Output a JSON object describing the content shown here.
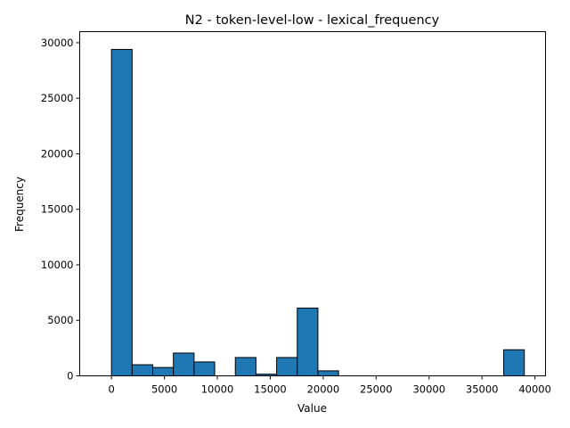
{
  "chart_data": {
    "type": "bar",
    "title": "N2 - token-level-low - lexical_frequency",
    "xlabel": "Value",
    "ylabel": "Frequency",
    "xlim": [
      -3000,
      41000
    ],
    "ylim": [
      0,
      31000
    ],
    "x_ticks": [
      0,
      5000,
      10000,
      15000,
      20000,
      25000,
      30000,
      35000,
      40000
    ],
    "y_ticks": [
      0,
      5000,
      10000,
      15000,
      20000,
      25000,
      30000
    ],
    "bins": [
      {
        "start": 0,
        "end": 1950,
        "value": 29400
      },
      {
        "start": 1950,
        "end": 3900,
        "value": 1000
      },
      {
        "start": 3900,
        "end": 5850,
        "value": 750
      },
      {
        "start": 5850,
        "end": 7800,
        "value": 2050
      },
      {
        "start": 7800,
        "end": 9750,
        "value": 1250
      },
      {
        "start": 9750,
        "end": 11700,
        "value": 0
      },
      {
        "start": 11700,
        "end": 13650,
        "value": 1650
      },
      {
        "start": 13650,
        "end": 15600,
        "value": 150
      },
      {
        "start": 15600,
        "end": 17550,
        "value": 1650
      },
      {
        "start": 17550,
        "end": 19500,
        "value": 6100
      },
      {
        "start": 19500,
        "end": 21450,
        "value": 450
      },
      {
        "start": 21450,
        "end": 23400,
        "value": 0
      },
      {
        "start": 23400,
        "end": 25350,
        "value": 0
      },
      {
        "start": 25350,
        "end": 27300,
        "value": 0
      },
      {
        "start": 27300,
        "end": 29250,
        "value": 0
      },
      {
        "start": 29250,
        "end": 31200,
        "value": 0
      },
      {
        "start": 31200,
        "end": 33150,
        "value": 0
      },
      {
        "start": 33150,
        "end": 35100,
        "value": 0
      },
      {
        "start": 35100,
        "end": 37050,
        "value": 0
      },
      {
        "start": 37050,
        "end": 39000,
        "value": 2350
      }
    ],
    "bar_color": "#1f77b4",
    "edge_color": "#000000",
    "grid": false
  }
}
